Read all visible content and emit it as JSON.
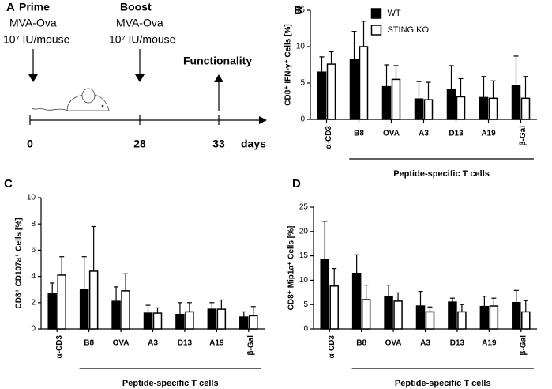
{
  "panel_a": {
    "panel_label": "A",
    "prime_title": "Prime",
    "prime_vaccine": "MVA-Ova",
    "prime_dose": "10⁷ IU/mouse",
    "boost_title": "Boost",
    "boost_vaccine": "MVA-Ova",
    "boost_dose": "10⁷ IU/mouse",
    "readout": "Functionality",
    "timeline_ticks": [
      "0",
      "28",
      "33"
    ],
    "timeline_unit": "days"
  },
  "chart_data": [
    {
      "type": "bar",
      "panel_label": "B",
      "ylabel": "CD8⁺ IFN-γ⁺ Cells [%]",
      "categories": [
        "α-CD3",
        "B8",
        "OVA",
        "A3",
        "D13",
        "A19",
        "β-Gal"
      ],
      "group_label": "Peptide-specific T cells",
      "series": [
        {
          "name": "WT",
          "color": "#000000",
          "values": [
            6.5,
            8.2,
            4.5,
            2.8,
            4.1,
            3.0,
            4.7
          ],
          "errors": [
            2.1,
            3.9,
            3.0,
            2.4,
            3.3,
            2.9,
            4.0
          ]
        },
        {
          "name": "STING KO",
          "color": "#ffffff",
          "values": [
            7.6,
            10.0,
            5.5,
            2.7,
            3.1,
            2.9,
            2.9
          ],
          "errors": [
            1.7,
            3.5,
            1.9,
            2.4,
            2.5,
            2.4,
            3.0
          ]
        }
      ],
      "ylim": [
        0,
        15
      ],
      "yticks": [
        0,
        5,
        10,
        15
      ],
      "legend": "upper right"
    },
    {
      "type": "bar",
      "panel_label": "C",
      "ylabel": "CD8⁺ CD107a⁺ Cells [%]",
      "categories": [
        "α-CD3",
        "B8",
        "OVA",
        "A3",
        "D13",
        "A19",
        "β-Gal"
      ],
      "group_label": "Peptide-specific T cells",
      "series": [
        {
          "color": "#000000",
          "values": [
            2.7,
            3.0,
            2.1,
            1.2,
            1.1,
            1.5,
            0.9
          ],
          "errors": [
            0.8,
            2.5,
            1.1,
            0.6,
            0.9,
            0.5,
            0.4
          ]
        },
        {
          "color": "#ffffff",
          "values": [
            4.1,
            4.4,
            2.9,
            1.2,
            1.3,
            1.5,
            1.0
          ],
          "errors": [
            1.4,
            3.4,
            1.3,
            0.4,
            0.7,
            0.7,
            0.7
          ]
        }
      ],
      "ylim": [
        0,
        10
      ],
      "yticks": [
        0,
        2,
        4,
        6,
        8,
        10
      ]
    },
    {
      "type": "bar",
      "panel_label": "D",
      "ylabel": "CD8⁺ Mip1a⁺ Cells [%]",
      "categories": [
        "α-CD3",
        "B8",
        "OVA",
        "A3",
        "D13",
        "A19",
        "β-Gal"
      ],
      "group_label": "Peptide-specific T cells",
      "series": [
        {
          "color": "#000000",
          "values": [
            14.2,
            11.4,
            6.7,
            4.7,
            5.5,
            4.6,
            5.4
          ],
          "errors": [
            7.9,
            3.8,
            2.3,
            3.0,
            0.8,
            2.1,
            2.5
          ]
        },
        {
          "color": "#ffffff",
          "values": [
            8.8,
            6.0,
            5.7,
            3.5,
            3.5,
            4.7,
            3.5
          ],
          "errors": [
            3.6,
            3.0,
            1.7,
            1.0,
            1.5,
            1.6,
            2.3
          ]
        }
      ],
      "ylim": [
        0,
        25
      ],
      "yticks": [
        0,
        5,
        10,
        15,
        20,
        25
      ]
    }
  ]
}
